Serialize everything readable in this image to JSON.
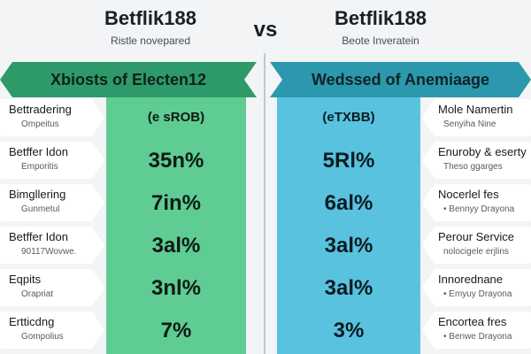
{
  "header": {
    "left_brand": "Betflik188",
    "left_sub": "Ristle novepared",
    "vs": "vs",
    "right_brand": "Betflik188",
    "right_sub": "Beote Inveratein"
  },
  "left": {
    "title": "Xbiosts of Electen12",
    "rows": [
      {
        "label": "Bettradering",
        "sub": "Ompeitus",
        "value": "(e sROB)"
      },
      {
        "label": "Betffer Idon",
        "sub": "Emporitis",
        "value": "35n%"
      },
      {
        "label": "Bimgllering",
        "sub": "Gunmetul",
        "value": "7in%"
      },
      {
        "label": "Betffer Idon",
        "sub": "90117Wovwe.",
        "value": "3al%"
      },
      {
        "label": "Eqpits",
        "sub": "Orapriat",
        "value": "3nl%"
      },
      {
        "label": "Ertticdng",
        "sub": "Gompolius",
        "value": "7%"
      }
    ]
  },
  "right": {
    "title": "Wedssed of Anemiaage",
    "rows": [
      {
        "label": "Mole Namertin",
        "sub": "Senyiha Nine",
        "value": "(eTXBB)"
      },
      {
        "label": "Enuroby & eserty",
        "sub": "Theso ggarges",
        "value": "5Rl%"
      },
      {
        "label": "Nocerlel fes",
        "sub": "• Bennyy Drayona",
        "value": "6al%"
      },
      {
        "label": "Perour Service",
        "sub": "nolocigele erjlins",
        "value": "3al%"
      },
      {
        "label": "Innorednane",
        "sub": "• Emyuy Drayona",
        "value": "3al%"
      },
      {
        "label": "Encortea fres",
        "sub": "• Benwe Drayona",
        "value": "3%"
      }
    ]
  }
}
